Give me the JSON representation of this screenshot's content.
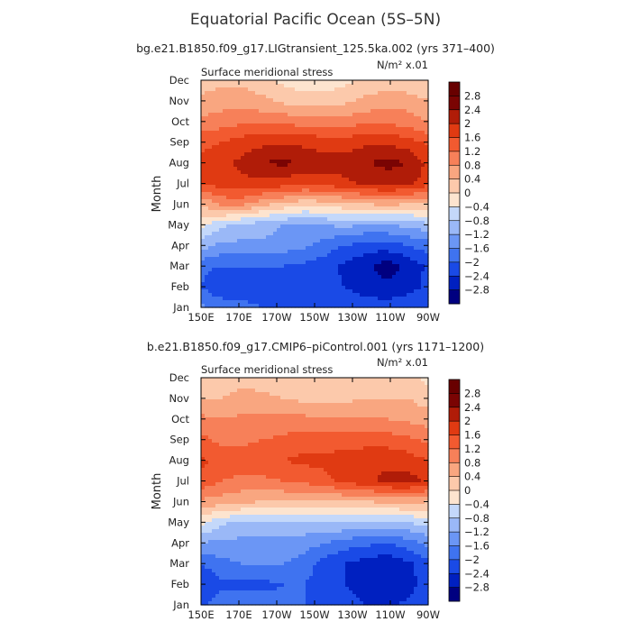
{
  "title": "Equatorial Pacific Ocean (5S–5N)",
  "chart_data": [
    {
      "type": "heatmap",
      "subtitle": "bg.e21.B1850.f09_g17.LIGtransient_125.5ka.002 (yrs 371–400)",
      "plot_label": "Surface meridional stress",
      "units": "N/m² x.01",
      "ylabel": "Month",
      "x_ticks": [
        "150E",
        "170E",
        "170W",
        "150W",
        "130W",
        "110W",
        "90W"
      ],
      "y_ticks": [
        "Jan",
        "Feb",
        "Mar",
        "Apr",
        "May",
        "Jun",
        "Jul",
        "Aug",
        "Sep",
        "Oct",
        "Nov",
        "Dec"
      ],
      "levels": [
        "2.8",
        "2.4",
        "2",
        "1.6",
        "1.2",
        "0.8",
        "0.4",
        "0",
        "−0.4",
        "−0.8",
        "−1.2",
        "−1.6",
        "−2",
        "−2.4",
        "−2.8"
      ],
      "grid": [
        [
          -1.5,
          -1.7,
          -1.9,
          -2.0,
          -2.0,
          -2.0,
          -2.0,
          -2.1,
          -2.2,
          -2.2,
          -2.1,
          -2.0
        ],
        [
          -2.0,
          -2.4,
          -2.2,
          -2.2,
          -2.2,
          -2.3,
          -2.3,
          -2.4,
          -2.6,
          -2.7,
          -2.6,
          -2.3
        ],
        [
          -1.9,
          -2.0,
          -2.0,
          -2.0,
          -2.0,
          -2.1,
          -2.2,
          -2.5,
          -2.7,
          -3.0,
          -2.7,
          -2.3
        ],
        [
          -1.0,
          -1.3,
          -1.3,
          -1.3,
          -1.4,
          -1.5,
          -1.8,
          -2.0,
          -2.2,
          -2.2,
          -2.0,
          -1.8
        ],
        [
          -0.3,
          -0.7,
          -0.9,
          -1.0,
          -1.2,
          -1.3,
          -1.2,
          -1.1,
          -1.2,
          -1.2,
          -1.1,
          -0.9
        ],
        [
          0.4,
          0.9,
          0.9,
          0.5,
          0.3,
          0.1,
          0.2,
          0.3,
          0.4,
          0.5,
          0.4,
          0.3
        ],
        [
          1.6,
          1.8,
          1.9,
          1.9,
          1.8,
          1.7,
          1.8,
          1.9,
          2.1,
          2.2,
          2.1,
          1.8
        ],
        [
          1.7,
          1.9,
          2.1,
          2.4,
          2.5,
          2.3,
          2.2,
          2.2,
          2.4,
          2.5,
          2.4,
          1.9
        ],
        [
          1.5,
          1.6,
          1.8,
          1.9,
          1.9,
          1.9,
          1.8,
          1.8,
          1.9,
          1.9,
          1.8,
          1.5
        ],
        [
          0.9,
          1.0,
          1.1,
          1.1,
          1.1,
          1.0,
          1.0,
          1.0,
          1.1,
          1.1,
          1.0,
          0.8
        ],
        [
          0.5,
          0.6,
          0.6,
          0.5,
          0.3,
          0.2,
          0.2,
          0.3,
          0.5,
          0.6,
          0.6,
          0.4
        ],
        [
          0.2,
          0.3,
          0.3,
          0.1,
          -0.1,
          -0.3,
          -0.3,
          -0.1,
          0.1,
          0.2,
          0.1,
          0.0
        ]
      ]
    },
    {
      "type": "heatmap",
      "subtitle": "b.e21.B1850.f09_g17.CMIP6–piControl.001 (yrs 1171–1200)",
      "plot_label": "Surface meridional stress",
      "units": "N/m² x.01",
      "ylabel": "Month",
      "x_ticks": [
        "150E",
        "170E",
        "170W",
        "150W",
        "130W",
        "110W",
        "90W"
      ],
      "y_ticks": [
        "Jan",
        "Feb",
        "Mar",
        "Apr",
        "May",
        "Jun",
        "Jul",
        "Aug",
        "Sep",
        "Oct",
        "Nov",
        "Dec"
      ],
      "levels": [
        "2.8",
        "2.4",
        "2",
        "1.6",
        "1.2",
        "0.8",
        "0.4",
        "0",
        "−0.4",
        "−0.8",
        "−1.2",
        "−1.6",
        "−2",
        "−2.4",
        "−2.8"
      ],
      "grid": [
        [
          -2.1,
          -1.7,
          -1.7,
          -1.8,
          -1.9,
          -2.0,
          -2.1,
          -2.2,
          -2.4,
          -2.5,
          -2.3,
          -2.0
        ],
        [
          -2.4,
          -2.1,
          -2.1,
          -2.1,
          -2.0,
          -2.0,
          -2.2,
          -2.4,
          -2.6,
          -2.8,
          -2.6,
          -2.2
        ],
        [
          -2.0,
          -1.7,
          -1.6,
          -1.6,
          -1.6,
          -1.8,
          -2.2,
          -2.4,
          -2.6,
          -2.7,
          -2.5,
          -2.1
        ],
        [
          -1.2,
          -1.3,
          -1.3,
          -1.3,
          -1.3,
          -1.4,
          -1.6,
          -1.8,
          -1.9,
          -2.0,
          -1.8,
          -1.5
        ],
        [
          -0.3,
          -0.7,
          -0.9,
          -0.9,
          -0.9,
          -0.9,
          -0.8,
          -0.8,
          -0.8,
          -0.9,
          -0.8,
          -0.6
        ],
        [
          0.7,
          0.6,
          0.5,
          0.4,
          0.4,
          0.3,
          0.3,
          0.4,
          0.4,
          0.5,
          0.5,
          0.4
        ],
        [
          1.5,
          1.2,
          1.1,
          1.1,
          1.2,
          1.3,
          1.5,
          1.7,
          1.9,
          2.1,
          2.2,
          1.9
        ],
        [
          1.7,
          1.4,
          1.4,
          1.5,
          1.6,
          1.7,
          1.7,
          1.8,
          1.9,
          1.9,
          1.8,
          1.6
        ],
        [
          1.3,
          1.1,
          1.1,
          1.2,
          1.3,
          1.4,
          1.4,
          1.4,
          1.4,
          1.4,
          1.3,
          1.1
        ],
        [
          0.9,
          0.8,
          0.9,
          0.9,
          0.9,
          0.9,
          0.8,
          0.8,
          0.8,
          0.8,
          0.7,
          0.6
        ],
        [
          0.4,
          0.4,
          0.5,
          0.5,
          0.4,
          0.3,
          0.3,
          0.3,
          0.4,
          0.4,
          0.4,
          0.2
        ],
        [
          0.1,
          0.2,
          0.3,
          0.2,
          0.1,
          0.1,
          0.1,
          0.1,
          0.2,
          0.2,
          0.1,
          -0.1
        ]
      ]
    }
  ],
  "palette": [
    "#000080",
    "#0020c0",
    "#1a4ae6",
    "#3f73f0",
    "#6b96f5",
    "#9ab8f7",
    "#c4d8fa",
    "#fde4cf",
    "#fcc9ab",
    "#f9a680",
    "#f78059",
    "#f25a30",
    "#e03a12",
    "#b01c08",
    "#7a0403",
    "#680000"
  ]
}
